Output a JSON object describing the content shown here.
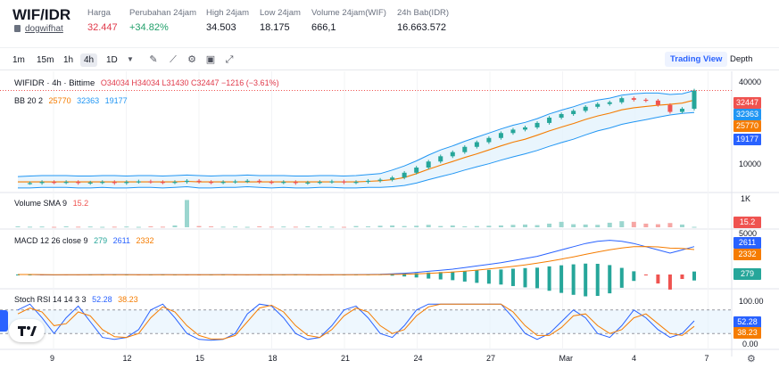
{
  "ticker": {
    "pair": "WIF/IDR",
    "coin_name": "dogwifhat",
    "stats": [
      {
        "label": "Harga",
        "value": "32.447",
        "color": "#e0394a"
      },
      {
        "label": "Perubahan 24jam",
        "value": "+34.82%",
        "color": "#22a06b"
      },
      {
        "label": "High 24jam",
        "value": "34.503",
        "color": "#131722"
      },
      {
        "label": "Low 24jam",
        "value": "18.175",
        "color": "#131722"
      },
      {
        "label": "Volume 24jam(WIF)",
        "value": "666,1",
        "color": "#131722"
      },
      {
        "label": "24h Bab(IDR)",
        "value": "16.663.572",
        "color": "#131722"
      }
    ]
  },
  "toolbar": {
    "intervals": [
      "1m",
      "15m",
      "1h",
      "4h",
      "1D"
    ],
    "active_interval": "4h",
    "tool_icons": [
      "chevron-down-icon",
      "draw-icon",
      "indicator-icon",
      "settings-icon",
      "save-icon",
      "fullscreen-icon"
    ],
    "trading_view_label": "Trading View",
    "depth_label": "Depth"
  },
  "legend": {
    "symbol": "WIFIDR · 4h · Bittime",
    "ohlc": "O34034 H34034 L31430 C32447 −1216 (−3.61%)",
    "bb_label": "BB 20 2",
    "bb_values": [
      "25770",
      "32363",
      "19177"
    ],
    "volume_label": "Volume SMA 9",
    "volume_value": "15.2",
    "macd_label": "MACD 12 26 close 9",
    "macd_values": [
      "279",
      "2611",
      "2332"
    ],
    "stoch_label": "Stoch RSI 14 14 3 3",
    "stoch_values": [
      "52.28",
      "38.23"
    ]
  },
  "axes": {
    "price_ticks": [
      "40000",
      "10000"
    ],
    "volume_ticks": [
      "1K"
    ],
    "macd_ticks": [
      "5000"
    ],
    "stoch_ticks": [
      "100.00",
      "0.00"
    ],
    "x_ticks": [
      "9",
      "12",
      "15",
      "18",
      "21",
      "24",
      "27",
      "Mar",
      "4",
      "7"
    ]
  },
  "tags": {
    "price": [
      {
        "text": "32447",
        "color": "#ef5350"
      },
      {
        "text": "32363",
        "color": "#2196f3"
      },
      {
        "text": "25770",
        "color": "#f57c00"
      },
      {
        "text": "19177",
        "color": "#2962ff"
      }
    ],
    "volume": {
      "text": "15.2",
      "color": "#ef5350"
    },
    "macd": [
      {
        "text": "2611",
        "color": "#2962ff"
      },
      {
        "text": "2332",
        "color": "#f57c00"
      },
      {
        "text": "279",
        "color": "#26a69a"
      }
    ],
    "stoch": [
      {
        "text": "52.28",
        "color": "#2962ff"
      },
      {
        "text": "38.23",
        "color": "#f57c00"
      }
    ]
  },
  "colors": {
    "up": "#26a69a",
    "down": "#ef5350",
    "bb_basis": "#f57c00",
    "bb_band": "#2196f3",
    "bb_fill": "#e3f2fd",
    "macd": "#2962ff",
    "signal": "#f57c00",
    "stoch_k": "#2962ff",
    "stoch_d": "#f57c00"
  },
  "chart_data": {
    "type": "line",
    "price_scale": "log",
    "price_range": [
      3000,
      45000
    ],
    "price_path": [
      3600,
      3600,
      3700,
      3650,
      3700,
      3600,
      3650,
      3700,
      3600,
      3700,
      3750,
      3700,
      3650,
      3700,
      3800,
      3700,
      3650,
      3700,
      3750,
      3800,
      3700,
      3650,
      3700,
      3600,
      3650,
      3700,
      3750,
      3650,
      3700,
      3800,
      3900,
      4100,
      4600,
      5200,
      6000,
      6800,
      7500,
      8500,
      9500,
      10500,
      11800,
      12800,
      13500,
      15000,
      17000,
      18500,
      20000,
      22000,
      23500,
      24500,
      27000,
      26000,
      25500,
      23000,
      19500,
      21000,
      32447
    ],
    "bb_upper": [
      4200,
      4250,
      4300,
      4300,
      4300,
      4250,
      4250,
      4300,
      4300,
      4250,
      4300,
      4300,
      4250,
      4300,
      4350,
      4300,
      4250,
      4300,
      4300,
      4350,
      4300,
      4300,
      4300,
      4250,
      4250,
      4300,
      4300,
      4250,
      4300,
      4400,
      4500,
      4900,
      5400,
      6100,
      7000,
      7900,
      8700,
      9700,
      10700,
      11800,
      13000,
      14200,
      15200,
      16600,
      18600,
      20300,
      22000,
      24200,
      25800,
      27000,
      29000,
      30000,
      30500,
      30500,
      29500,
      30000,
      32363
    ],
    "bb_basis": [
      3700,
      3700,
      3700,
      3700,
      3700,
      3700,
      3700,
      3700,
      3700,
      3700,
      3700,
      3700,
      3700,
      3700,
      3750,
      3700,
      3700,
      3700,
      3700,
      3700,
      3700,
      3700,
      3700,
      3700,
      3700,
      3700,
      3700,
      3700,
      3700,
      3750,
      3800,
      3900,
      4100,
      4500,
      5000,
      5500,
      6000,
      6600,
      7200,
      7900,
      8700,
      9500,
      10200,
      11200,
      12400,
      13600,
      14800,
      16300,
      17700,
      18900,
      20500,
      21500,
      22200,
      22800,
      23300,
      24000,
      25770
    ],
    "bb_lower": [
      3200,
      3200,
      3250,
      3250,
      3250,
      3200,
      3200,
      3250,
      3200,
      3200,
      3250,
      3250,
      3200,
      3250,
      3300,
      3200,
      3200,
      3250,
      3250,
      3300,
      3250,
      3200,
      3250,
      3200,
      3200,
      3250,
      3250,
      3200,
      3200,
      3250,
      3250,
      3300,
      3400,
      3600,
      3900,
      4200,
      4500,
      4900,
      5300,
      5700,
      6200,
      6700,
      7200,
      7800,
      8600,
      9400,
      10200,
      11300,
      12400,
      13300,
      14500,
      15400,
      16200,
      17200,
      18100,
      18800,
      19177
    ],
    "volume_path": [
      30,
      20,
      25,
      15,
      30,
      20,
      25,
      15,
      20,
      25,
      15,
      30,
      20,
      60,
      900,
      40,
      30,
      20,
      25,
      15,
      30,
      20,
      25,
      20,
      30,
      25,
      20,
      15,
      40,
      30,
      50,
      60,
      40,
      50,
      80,
      40,
      60,
      30,
      40,
      50,
      60,
      80,
      90,
      70,
      120,
      180,
      100,
      90,
      80,
      150,
      200,
      180,
      120,
      100,
      140,
      90,
      15.2
    ],
    "macd_path": [
      0,
      0,
      -30,
      -40,
      -35,
      -30,
      -20,
      -10,
      -5,
      -10,
      -20,
      -15,
      -10,
      -15,
      -20,
      -25,
      -15,
      -10,
      -20,
      -30,
      -25,
      -20,
      -15,
      -10,
      -20,
      -30,
      -25,
      -20,
      -10,
      0,
      20,
      60,
      120,
      200,
      300,
      400,
      500,
      650,
      800,
      950,
      1100,
      1300,
      1500,
      1700,
      2000,
      2300,
      2600,
      2900,
      3100,
      3200,
      3100,
      2900,
      2600,
      2300,
      2000,
      2300,
      2611
    ],
    "signal_path": [
      0,
      0,
      -10,
      -20,
      -25,
      -28,
      -26,
      -22,
      -18,
      -16,
      -17,
      -16,
      -15,
      -15,
      -16,
      -18,
      -17,
      -16,
      -17,
      -19,
      -20,
      -20,
      -19,
      -17,
      -18,
      -20,
      -21,
      -21,
      -19,
      -15,
      -8,
      5,
      28,
      62,
      110,
      170,
      235,
      320,
      410,
      520,
      630,
      760,
      900,
      1060,
      1240,
      1440,
      1650,
      1880,
      2100,
      2320,
      2480,
      2600,
      2620,
      2580,
      2470,
      2440,
      2332
    ],
    "stoch_k_path": [
      80,
      95,
      60,
      20,
      60,
      90,
      50,
      10,
      5,
      10,
      30,
      80,
      95,
      60,
      20,
      5,
      3,
      5,
      20,
      70,
      95,
      90,
      60,
      20,
      5,
      10,
      40,
      80,
      90,
      60,
      20,
      10,
      40,
      80,
      95,
      95,
      95,
      95,
      95,
      95,
      95,
      60,
      20,
      5,
      20,
      50,
      80,
      60,
      20,
      10,
      40,
      80,
      60,
      30,
      10,
      20,
      52.28
    ],
    "stoch_d_path": [
      70,
      85,
      75,
      40,
      45,
      75,
      65,
      30,
      12,
      10,
      20,
      60,
      88,
      75,
      40,
      15,
      6,
      6,
      15,
      50,
      85,
      92,
      75,
      40,
      15,
      10,
      30,
      65,
      85,
      75,
      40,
      20,
      30,
      65,
      88,
      95,
      95,
      95,
      95,
      95,
      95,
      75,
      40,
      15,
      15,
      35,
      65,
      70,
      40,
      20,
      30,
      60,
      70,
      45,
      20,
      15,
      38.23
    ]
  }
}
